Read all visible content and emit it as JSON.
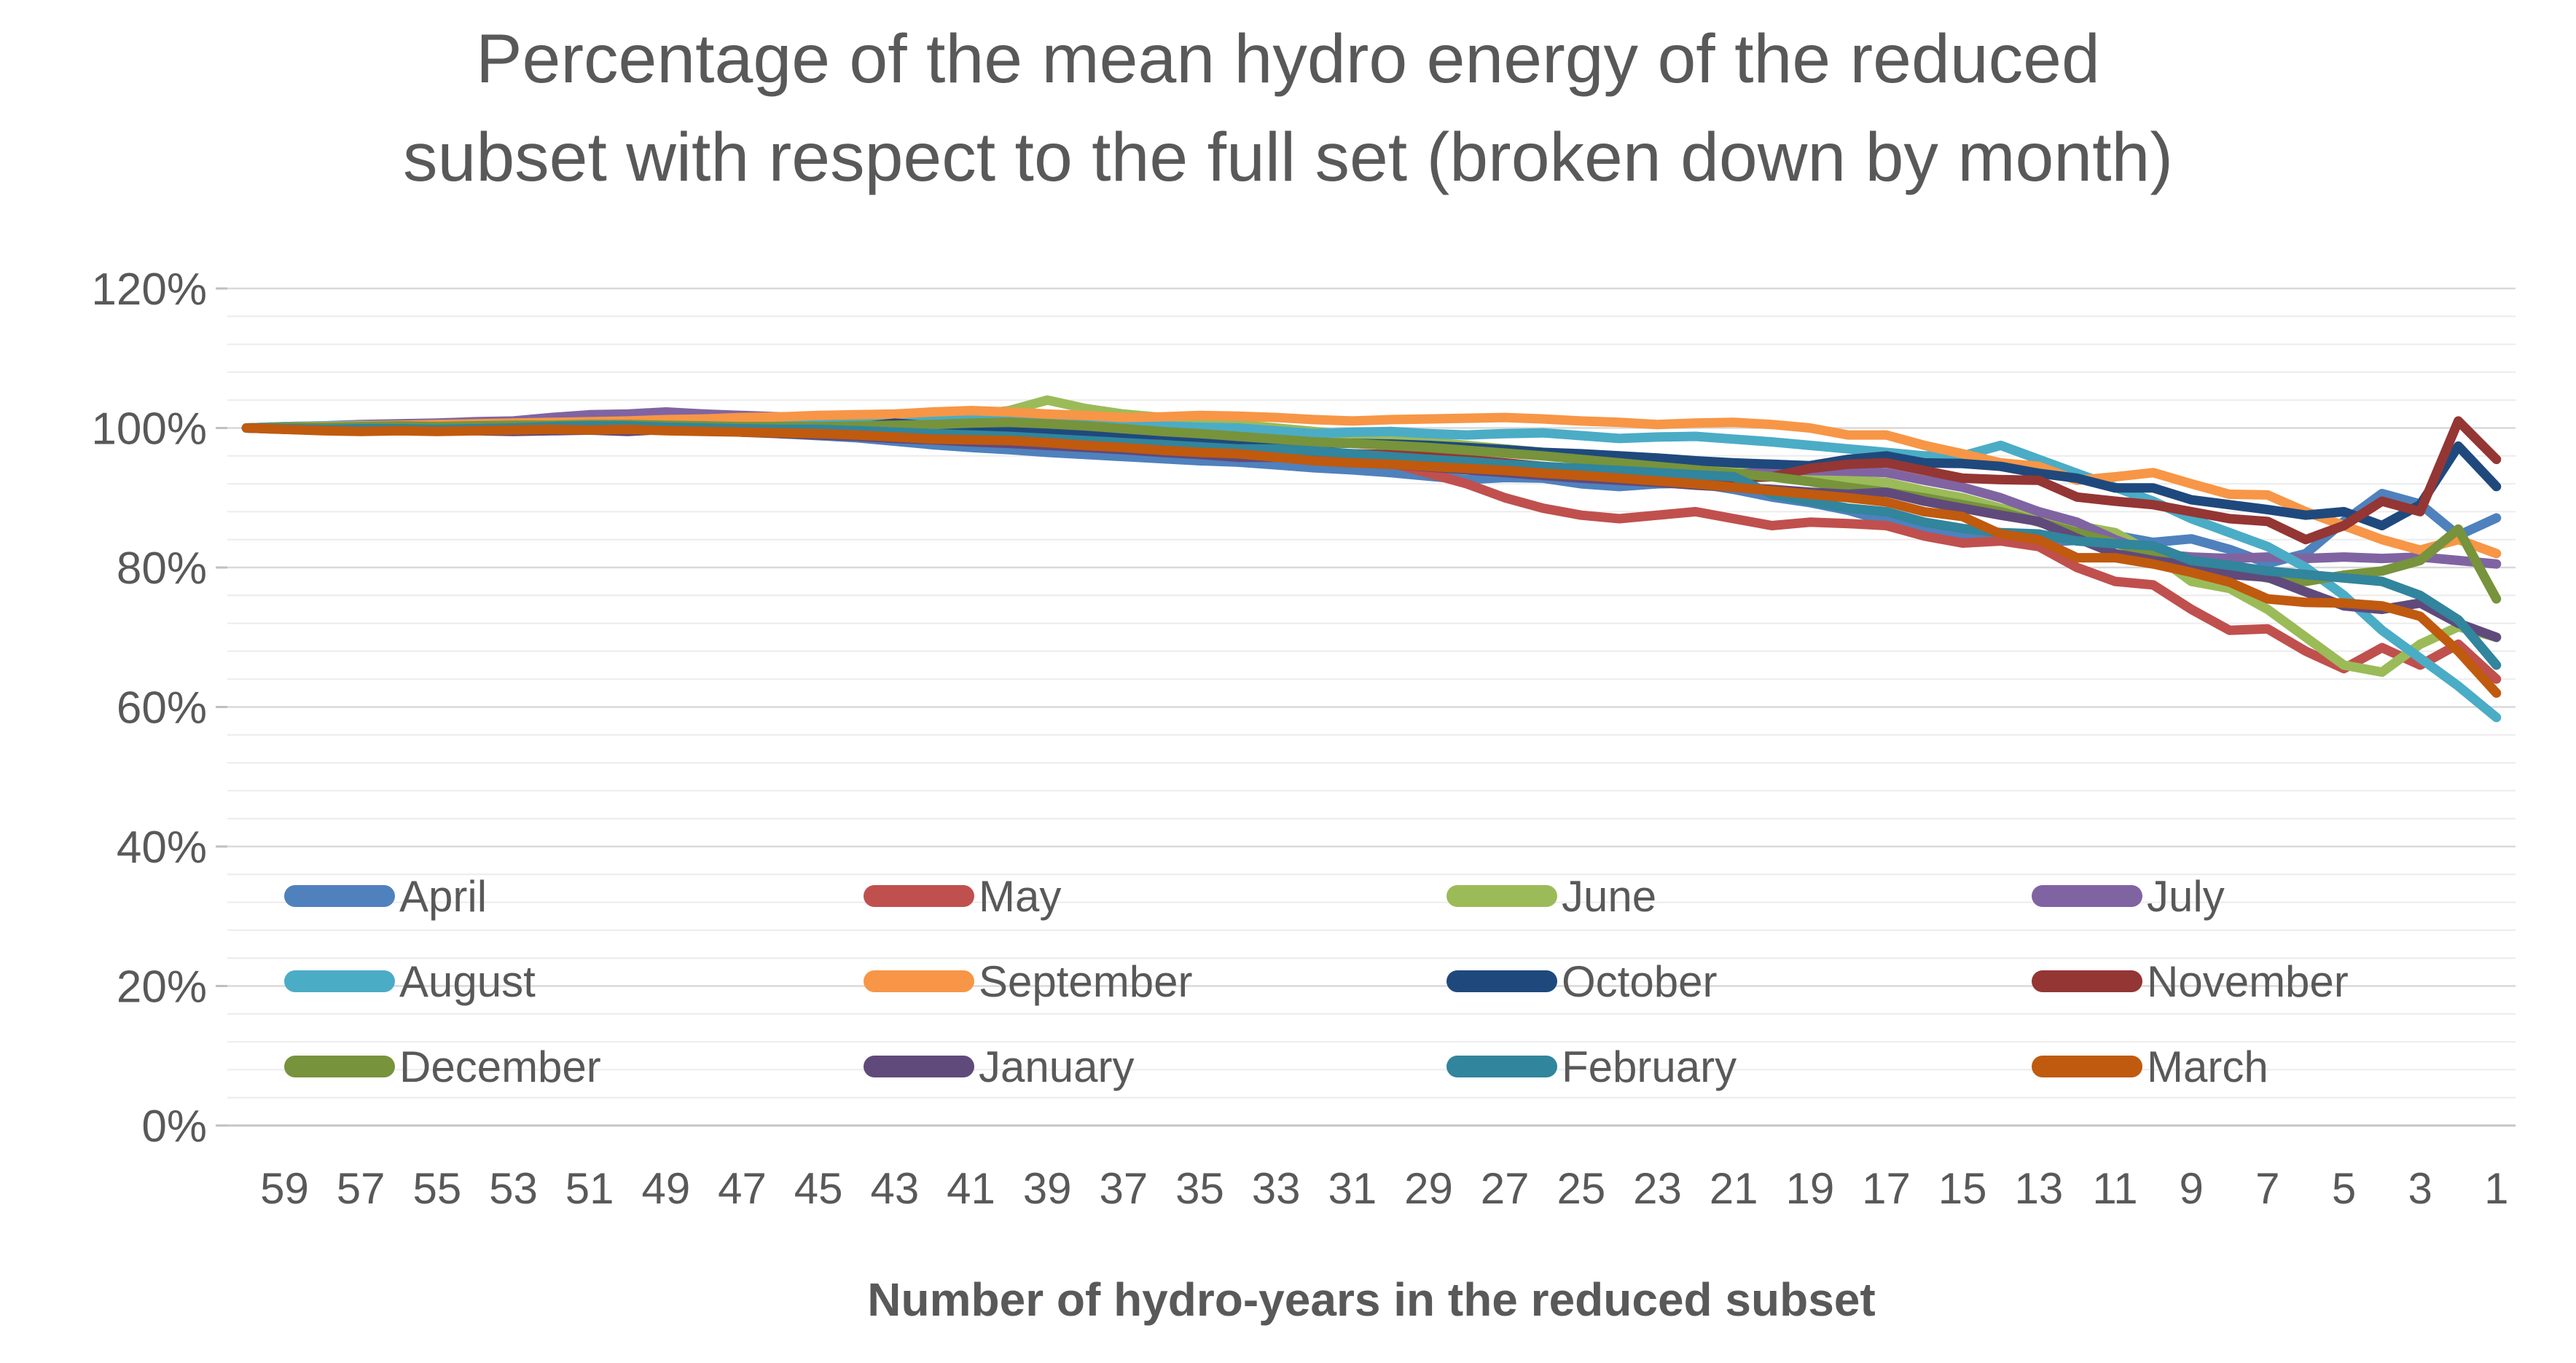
{
  "page": {
    "background": "#ffffff",
    "text_color": "#595959"
  },
  "chart_data": {
    "type": "line",
    "title": "Percentage of the mean hydro energy of the reduced subset with respect to the full set (broken down by month)",
    "title_lines": [
      "Percentage of the mean hydro energy of the reduced",
      "subset with respect to the full set (broken down by month)"
    ],
    "xlabel": "Number of hydro-years in the reduced subset",
    "ylabel": "",
    "x": [
      60,
      59,
      58,
      57,
      56,
      55,
      54,
      53,
      52,
      51,
      50,
      49,
      48,
      47,
      46,
      45,
      44,
      43,
      42,
      41,
      40,
      39,
      38,
      37,
      36,
      35,
      34,
      33,
      32,
      31,
      30,
      29,
      28,
      27,
      26,
      25,
      24,
      23,
      22,
      21,
      20,
      19,
      18,
      17,
      16,
      15,
      14,
      13,
      12,
      11,
      10,
      9,
      8,
      7,
      6,
      5,
      4,
      3,
      2,
      1
    ],
    "x_axis": {
      "labeled_values": [
        59,
        57,
        55,
        53,
        51,
        49,
        47,
        45,
        43,
        41,
        39,
        37,
        35,
        33,
        31,
        29,
        27,
        25,
        23,
        21,
        19,
        17,
        15,
        13,
        11,
        9,
        7,
        5,
        3,
        1
      ]
    },
    "y_axis": {
      "min": 0,
      "max": 120,
      "major_step": 20,
      "minor_step": 4,
      "tick_labels": [
        "0%",
        "20%",
        "40%",
        "60%",
        "80%",
        "100%",
        "120%"
      ]
    },
    "grid": {
      "minor_color": "#ececec",
      "major_color": "#d9d9d9",
      "zero_axis_color": "#c6c6c6",
      "tick_color": "#bfbfbf",
      "grid_on": true
    },
    "legend": {
      "position": "inside-bottom",
      "rows": 3,
      "columns": 4
    },
    "series": [
      {
        "name": "April",
        "color": "#4F81BD",
        "values": [
          100,
          100.1,
          100.1,
          100,
          100.2,
          100.3,
          100.3,
          100.2,
          100.1,
          100.3,
          100.4,
          100.1,
          99.8,
          99.5,
          99.2,
          98.9,
          98.6,
          98.1,
          97.6,
          97.2,
          96.9,
          96.5,
          96.2,
          95.9,
          95.6,
          95.3,
          95.1,
          94.7,
          94.3,
          94,
          93.6,
          93.1,
          92.6,
          92.9,
          92.8,
          92,
          91.6,
          92,
          92.1,
          91.2,
          90.1,
          89.3,
          88.2,
          86.6,
          85.6,
          84.6,
          84.1,
          83.6,
          83.9,
          84.6,
          83.6,
          84.1,
          82.6,
          80.6,
          82,
          86.6,
          90.6,
          89.1,
          84.6,
          87.1
        ]
      },
      {
        "name": "May",
        "color": "#C0504D",
        "values": [
          100,
          99.9,
          99.8,
          99.9,
          100,
          99.9,
          100,
          100.1,
          100.2,
          100.2,
          100.1,
          100.2,
          100.3,
          100.3,
          99.9,
          99.6,
          99.1,
          98.8,
          98.5,
          98.2,
          98,
          97.9,
          97.8,
          97.7,
          97.5,
          97.3,
          97.2,
          97,
          96.5,
          96,
          95,
          93.5,
          92,
          90,
          88.5,
          87.5,
          87,
          87.5,
          88,
          87,
          86,
          86.5,
          86.3,
          86,
          84.5,
          83.5,
          83.8,
          83,
          80,
          78,
          77.5,
          74,
          71,
          71.2,
          68,
          65.5,
          68.5,
          66,
          69,
          64
        ]
      },
      {
        "name": "June",
        "color": "#9BBB59",
        "values": [
          100,
          100.1,
          100.2,
          100.2,
          100.3,
          100.3,
          100.4,
          100.5,
          100.6,
          100.8,
          101,
          101,
          100.9,
          101,
          101,
          101,
          101.2,
          101.3,
          101.5,
          101.8,
          102.5,
          104,
          102.8,
          102,
          101.5,
          101,
          100.5,
          100,
          99.5,
          99,
          98.5,
          98,
          97.5,
          97,
          96.5,
          96,
          95.5,
          95,
          94.5,
          94,
          93.5,
          93,
          92.5,
          92.2,
          91,
          90,
          88.5,
          87,
          86,
          85,
          82,
          78,
          77,
          74,
          70,
          66,
          65,
          69,
          71.5,
          70
        ]
      },
      {
        "name": "July",
        "color": "#8064A2",
        "values": [
          100,
          100.2,
          100.3,
          100.5,
          100.6,
          100.7,
          100.9,
          101,
          101.5,
          101.9,
          102,
          102.3,
          102,
          101.8,
          101.6,
          101.5,
          101.3,
          101,
          100.8,
          100.5,
          100.3,
          99.9,
          99.5,
          99,
          98.5,
          98,
          97.5,
          97,
          96.5,
          96,
          95.5,
          95,
          94.6,
          94.3,
          94,
          93.8,
          93.5,
          93.1,
          92.9,
          93.2,
          94,
          93.9,
          93.8,
          93.6,
          92.5,
          91.5,
          90,
          88,
          86.5,
          84,
          82,
          81.5,
          81.3,
          81.5,
          81.3,
          81.5,
          81.3,
          81.5,
          81,
          80.5
        ]
      },
      {
        "name": "August",
        "color": "#4BACC6",
        "values": [
          100,
          100.2,
          100.3,
          100.4,
          100.4,
          100.5,
          100.6,
          100.7,
          100.8,
          100.8,
          100.8,
          100.7,
          100.6,
          100.6,
          100.5,
          100.5,
          100.7,
          100.8,
          101,
          101.4,
          101.8,
          101.7,
          101.5,
          100.9,
          100.3,
          100.1,
          100,
          99.6,
          99.2,
          99.4,
          99.5,
          99.2,
          99,
          99.2,
          99.3,
          98.9,
          98.5,
          98.7,
          98.8,
          98.4,
          98,
          97.5,
          97,
          96.5,
          96,
          96,
          97.5,
          95.5,
          93.5,
          91.5,
          89.5,
          87,
          85,
          83,
          80,
          76,
          71,
          67,
          63,
          58.5
        ]
      },
      {
        "name": "September",
        "color": "#F79646",
        "values": [
          100,
          100.1,
          100.2,
          100.3,
          100.4,
          100.5,
          100.6,
          100.7,
          100.8,
          100.9,
          101,
          101.2,
          101.3,
          101.5,
          101.6,
          101.8,
          101.9,
          102,
          102.3,
          102.5,
          102.3,
          102,
          101.8,
          101.5,
          101.6,
          101.8,
          101.7,
          101.5,
          101.2,
          101,
          101.2,
          101.3,
          101.4,
          101.5,
          101.3,
          101,
          100.8,
          100.5,
          100.7,
          100.8,
          100.5,
          100,
          99,
          99,
          97.5,
          96.3,
          95,
          94.5,
          92.5,
          93,
          93.6,
          92,
          90.5,
          90.4,
          88,
          86,
          84,
          82.5,
          84,
          82
        ]
      },
      {
        "name": "October",
        "color": "#1F497D",
        "values": [
          100,
          99.9,
          99.8,
          99.9,
          99.9,
          99.8,
          99.9,
          100,
          100.1,
          100.2,
          100.2,
          100,
          99.8,
          99.7,
          99.7,
          99.6,
          100.1,
          100.7,
          100.3,
          100,
          99.8,
          99.6,
          99.4,
          99.2,
          99,
          98.6,
          98.2,
          98,
          97.9,
          97.8,
          97.7,
          97.5,
          97.2,
          96.9,
          96.5,
          96.3,
          96,
          95.7,
          95.3,
          95,
          94.8,
          94.6,
          95.5,
          96,
          95,
          94.9,
          94.5,
          93.5,
          92.8,
          91.4,
          91.4,
          89.7,
          89,
          88.3,
          87.5,
          88,
          86,
          89,
          97.4,
          91.6
        ]
      },
      {
        "name": "November",
        "color": "#943634",
        "values": [
          100,
          99.8,
          99.7,
          99.6,
          99.7,
          99.6,
          99.7,
          99.8,
          100,
          100.1,
          100,
          100.2,
          100.3,
          100,
          99.6,
          99.3,
          99.1,
          98.9,
          98.8,
          98.5,
          98.3,
          98,
          97.8,
          97.5,
          97.2,
          96.8,
          96.5,
          96.2,
          96.4,
          96.3,
          96.2,
          95.9,
          95.5,
          95,
          94.5,
          94,
          93.5,
          93,
          92.5,
          92.8,
          93,
          94.2,
          94.8,
          95,
          93.9,
          92.8,
          92.6,
          92.5,
          90.1,
          89.5,
          89,
          88,
          87,
          86.6,
          84,
          86,
          89.5,
          88,
          101,
          95.5
        ]
      },
      {
        "name": "December",
        "color": "#77933C",
        "values": [
          100,
          100.1,
          100.1,
          100.2,
          100.3,
          100.2,
          100.3,
          100.4,
          100.4,
          100.5,
          100.5,
          100.4,
          100.3,
          100.2,
          100.2,
          100.2,
          100.3,
          100.4,
          100.5,
          100.7,
          100.8,
          100.6,
          100.3,
          99.9,
          99.5,
          99.2,
          98.8,
          98.4,
          98,
          97.8,
          97.5,
          97.2,
          96.8,
          96.4,
          96,
          95.5,
          95,
          94.5,
          94,
          93.5,
          93,
          92.3,
          91.5,
          90.8,
          90,
          89,
          88,
          86.5,
          85,
          83.5,
          82,
          80.5,
          79.5,
          78.5,
          78,
          78.9,
          79.5,
          81,
          85.5,
          75.5
        ]
      },
      {
        "name": "January",
        "color": "#604A7B",
        "values": [
          100,
          99.9,
          99.8,
          99.7,
          99.6,
          99.7,
          99.6,
          99.5,
          99.6,
          99.7,
          99.5,
          99.8,
          99.7,
          99.4,
          99.2,
          99,
          98.8,
          98.5,
          98.3,
          98,
          97.8,
          97.5,
          97.2,
          96.9,
          96.5,
          96.2,
          95.8,
          95.8,
          95.5,
          95.2,
          94.8,
          94.4,
          94,
          93.6,
          93.2,
          92.8,
          92.5,
          92.2,
          91.8,
          91.5,
          91.2,
          90.8,
          90.5,
          90.8,
          89.5,
          88.5,
          87.5,
          86.6,
          84.2,
          82,
          81,
          80.3,
          79,
          78.6,
          76.5,
          74.5,
          74,
          74.9,
          72,
          70
        ]
      },
      {
        "name": "February",
        "color": "#31859C",
        "values": [
          100,
          99.9,
          99.8,
          99.9,
          99.9,
          99.8,
          99.9,
          100,
          100.2,
          100.3,
          100.3,
          100.1,
          100,
          99.9,
          99.8,
          99.8,
          99.6,
          99.4,
          99.2,
          99,
          98.8,
          98.5,
          98.2,
          97.9,
          97.6,
          97.3,
          97,
          97,
          96.7,
          96.3,
          95.9,
          95.5,
          95.2,
          94.8,
          94.5,
          94.2,
          93.9,
          93.6,
          93.3,
          93,
          90.5,
          89.5,
          88.5,
          88,
          86.5,
          85.6,
          85,
          84.8,
          83.8,
          83.4,
          83.1,
          81,
          80.3,
          79.5,
          79,
          78.5,
          78,
          76,
          72.5,
          66
        ]
      },
      {
        "name": "March",
        "color": "#C05A0E",
        "values": [
          100,
          99.8,
          99.6,
          99.5,
          99.6,
          99.5,
          99.6,
          99.7,
          99.8,
          99.7,
          99.8,
          99.6,
          99.5,
          99.4,
          99.3,
          99.2,
          99,
          98.7,
          98.4,
          98.3,
          98.2,
          97.9,
          97.5,
          97.2,
          96.8,
          96.5,
          96.3,
          95.8,
          95.3,
          95,
          94.8,
          94.5,
          94.2,
          93.9,
          93.5,
          93.2,
          92.8,
          92.4,
          92,
          91.5,
          91,
          90.5,
          90,
          89.4,
          88,
          87.3,
          84.8,
          84,
          81.4,
          81.4,
          80.5,
          79.3,
          77.9,
          75.5,
          75,
          74.9,
          74.5,
          73,
          68,
          62
        ]
      }
    ]
  }
}
